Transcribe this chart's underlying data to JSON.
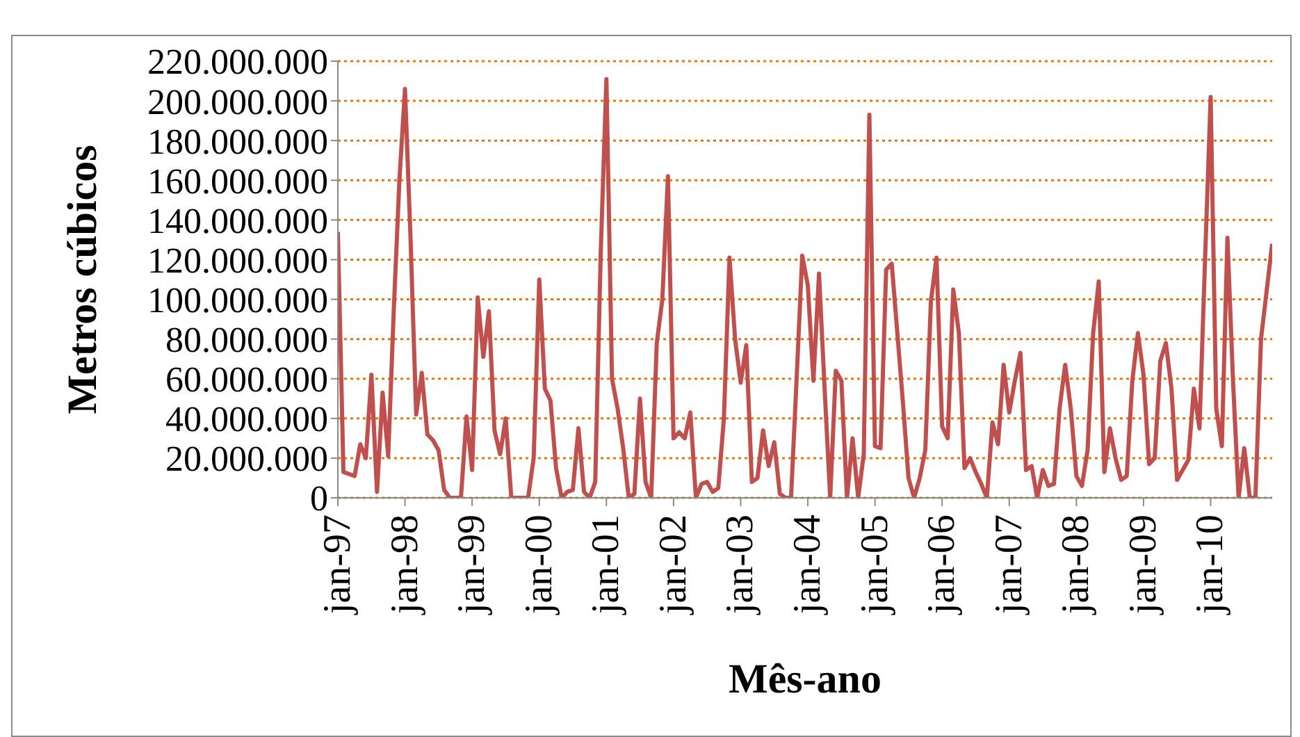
{
  "chart_data": {
    "type": "line",
    "xlabel": "Mês-ano",
    "ylabel": "Metros cúbicos",
    "categories": [
      "jan-97",
      null,
      null,
      null,
      null,
      null,
      null,
      null,
      null,
      null,
      null,
      null,
      "jan-98",
      null,
      null,
      null,
      null,
      null,
      null,
      null,
      null,
      null,
      null,
      null,
      "jan-99",
      null,
      null,
      null,
      null,
      null,
      null,
      null,
      null,
      null,
      null,
      null,
      "jan-00",
      null,
      null,
      null,
      null,
      null,
      null,
      null,
      null,
      null,
      null,
      null,
      "jan-01",
      null,
      null,
      null,
      null,
      null,
      null,
      null,
      null,
      null,
      null,
      null,
      "jan-02",
      null,
      null,
      null,
      null,
      null,
      null,
      null,
      null,
      null,
      null,
      null,
      "jan-03",
      null,
      null,
      null,
      null,
      null,
      null,
      null,
      null,
      null,
      null,
      null,
      "jan-04",
      null,
      null,
      null,
      null,
      null,
      null,
      null,
      null,
      null,
      null,
      null,
      "jan-05",
      null,
      null,
      null,
      null,
      null,
      null,
      null,
      null,
      null,
      null,
      null,
      "jan-06",
      null,
      null,
      null,
      null,
      null,
      null,
      null,
      null,
      null,
      null,
      null,
      "jan-07",
      null,
      null,
      null,
      null,
      null,
      null,
      null,
      null,
      null,
      null,
      null,
      "jan-08",
      null,
      null,
      null,
      null,
      null,
      null,
      null,
      null,
      null,
      null,
      null,
      "jan-09",
      null,
      null,
      null,
      null,
      null,
      null,
      null,
      null,
      null,
      null,
      null,
      "jan-10",
      null,
      null,
      null,
      null,
      null,
      null,
      null,
      null,
      null,
      null,
      null
    ],
    "series": [
      {
        "color": "#c0504d",
        "values": [
          134000000,
          13000000,
          12000000,
          11000000,
          27000000,
          20000000,
          62000000,
          3000000,
          53000000,
          21000000,
          95000000,
          160000000,
          206000000,
          130000000,
          42000000,
          63000000,
          32000000,
          29000000,
          24000000,
          4000000,
          0,
          0,
          0,
          41000000,
          14000000,
          101000000,
          71000000,
          94000000,
          34000000,
          22000000,
          40000000,
          0,
          0,
          0,
          0,
          20000000,
          110000000,
          55000000,
          49000000,
          15000000,
          0,
          3000000,
          4000000,
          35000000,
          3000000,
          0,
          8000000,
          125000000,
          211000000,
          60000000,
          45000000,
          25000000,
          0,
          2000000,
          50000000,
          8000000,
          0,
          78000000,
          100000000,
          162000000,
          30000000,
          33000000,
          30000000,
          43000000,
          0,
          7000000,
          8000000,
          3000000,
          5000000,
          40000000,
          121000000,
          80000000,
          58000000,
          77000000,
          8000000,
          10000000,
          34000000,
          16000000,
          28000000,
          2000000,
          0,
          0,
          60000000,
          122000000,
          107000000,
          59000000,
          113000000,
          55000000,
          0,
          64000000,
          59000000,
          0,
          30000000,
          0,
          22000000,
          193000000,
          26000000,
          25000000,
          115000000,
          118000000,
          83000000,
          48000000,
          10000000,
          0,
          10000000,
          24000000,
          99000000,
          121000000,
          36000000,
          30000000,
          105000000,
          83000000,
          15000000,
          20000000,
          13000000,
          7000000,
          0,
          38000000,
          27000000,
          67000000,
          43000000,
          59000000,
          73000000,
          14000000,
          16000000,
          0,
          14000000,
          6000000,
          7000000,
          45000000,
          67000000,
          45000000,
          11000000,
          6000000,
          24000000,
          83000000,
          109000000,
          13000000,
          35000000,
          20000000,
          9000000,
          11000000,
          59000000,
          83000000,
          62000000,
          17000000,
          20000000,
          69000000,
          78000000,
          55000000,
          9000000,
          14000000,
          19000000,
          55000000,
          35000000,
          120000000,
          202000000,
          45000000,
          26000000,
          131000000,
          59000000,
          0,
          25000000,
          0,
          0,
          80000000,
          104000000,
          128000000
        ]
      }
    ],
    "ylim": [
      0,
      220000000
    ],
    "yticks": [
      0,
      {
        "value": 20000000,
        "label": "20.000.000"
      },
      {
        "value": 40000000,
        "label": "40.000.000"
      },
      {
        "value": 60000000,
        "label": "60.000.000"
      },
      {
        "value": 80000000,
        "label": "80.000.000"
      },
      {
        "value": 100000000,
        "label": "100.000.000"
      },
      {
        "value": 120000000,
        "label": "120.000.000"
      },
      {
        "value": 140000000,
        "label": "140.000.000"
      },
      {
        "value": 160000000,
        "label": "160.000.000"
      },
      {
        "value": 180000000,
        "label": "180.000.000"
      },
      {
        "value": 200000000,
        "label": "200.000.000"
      },
      {
        "value": 220000000,
        "label": "220.000.000"
      }
    ],
    "grid": "y",
    "marker": "none",
    "line_style": "solid"
  }
}
